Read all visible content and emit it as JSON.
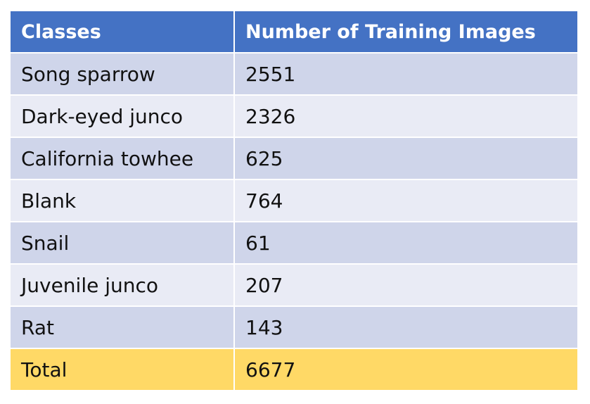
{
  "table": {
    "headers": [
      "Classes",
      "Number of Training Images"
    ],
    "rows": [
      {
        "class": "Song sparrow",
        "count": "2551"
      },
      {
        "class": "Dark-eyed junco",
        "count": "2326"
      },
      {
        "class": "California towhee",
        "count": "625"
      },
      {
        "class": "Blank",
        "count": "764"
      },
      {
        "class": "Snail",
        "count": "61"
      },
      {
        "class": "Juvenile junco",
        "count": "207"
      },
      {
        "class": "Rat",
        "count": "143"
      }
    ],
    "total": {
      "label": "Total",
      "count": "6677"
    }
  },
  "colors": {
    "header_bg": "#4472c4",
    "row_dark": "#cfd5ea",
    "row_light": "#e9ebf5",
    "total_bg": "#ffd966"
  }
}
